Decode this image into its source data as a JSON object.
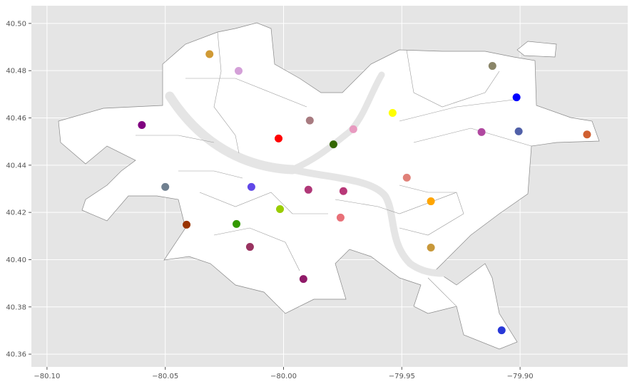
{
  "chart_data": {
    "type": "scatter",
    "title": "",
    "xlabel": "",
    "ylabel": "",
    "xlim": [
      -80.1066,
      -79.8545
    ],
    "ylim": [
      40.3546,
      40.5075
    ],
    "grid": true,
    "x_ticks": [
      "−80.10",
      "−80.05",
      "−80.00",
      "−79.95",
      "−79.90"
    ],
    "x_tick_values": [
      -80.1,
      -80.05,
      -80.0,
      -79.95,
      -79.9
    ],
    "y_ticks": [
      "40.36",
      "40.38",
      "40.40",
      "40.42",
      "40.44",
      "40.46",
      "40.48",
      "40.50"
    ],
    "y_tick_values": [
      40.36,
      40.38,
      40.4,
      40.42,
      40.44,
      40.46,
      40.48,
      40.5
    ],
    "points": [
      {
        "x": -80.0313,
        "y": 40.487,
        "color": "#d09a35"
      },
      {
        "x": -80.019,
        "y": 40.4799,
        "color": "#d4a0d8"
      },
      {
        "x": -80.0599,
        "y": 40.457,
        "color": "#800080"
      },
      {
        "x": -80.0021,
        "y": 40.4513,
        "color": "#ff0000"
      },
      {
        "x": -79.9889,
        "y": 40.4589,
        "color": "#a87b80"
      },
      {
        "x": -79.9789,
        "y": 40.4488,
        "color": "#336600"
      },
      {
        "x": -79.9705,
        "y": 40.4552,
        "color": "#e89ac0"
      },
      {
        "x": -79.9539,
        "y": 40.4621,
        "color": "#ffff00"
      },
      {
        "x": -79.9117,
        "y": 40.482,
        "color": "#8a8568"
      },
      {
        "x": -79.9015,
        "y": 40.4687,
        "color": "#0000ff"
      },
      {
        "x": -79.9163,
        "y": 40.454,
        "color": "#b048a0"
      },
      {
        "x": -79.9006,
        "y": 40.4543,
        "color": "#5060a8"
      },
      {
        "x": -79.8717,
        "y": 40.453,
        "color": "#d06030"
      },
      {
        "x": -80.05,
        "y": 40.4308,
        "color": "#708090"
      },
      {
        "x": -80.0136,
        "y": 40.4308,
        "color": "#6048e8"
      },
      {
        "x": -79.9895,
        "y": 40.4296,
        "color": "#b03878"
      },
      {
        "x": -79.9747,
        "y": 40.429,
        "color": "#b83878"
      },
      {
        "x": -79.9479,
        "y": 40.4347,
        "color": "#e08078"
      },
      {
        "x": -79.9377,
        "y": 40.4247,
        "color": "#ffa500"
      },
      {
        "x": -80.0015,
        "y": 40.4214,
        "color": "#99cc00"
      },
      {
        "x": -80.041,
        "y": 40.4148,
        "color": "#993300"
      },
      {
        "x": -80.0199,
        "y": 40.4151,
        "color": "#339900"
      },
      {
        "x": -79.9759,
        "y": 40.4178,
        "color": "#e87078"
      },
      {
        "x": -80.0142,
        "y": 40.4054,
        "color": "#993360"
      },
      {
        "x": -79.9377,
        "y": 40.4051,
        "color": "#c8983a"
      },
      {
        "x": -79.9916,
        "y": 40.3918,
        "color": "#901a68"
      },
      {
        "x": -79.9078,
        "y": 40.3701,
        "color": "#2838d8"
      }
    ]
  }
}
